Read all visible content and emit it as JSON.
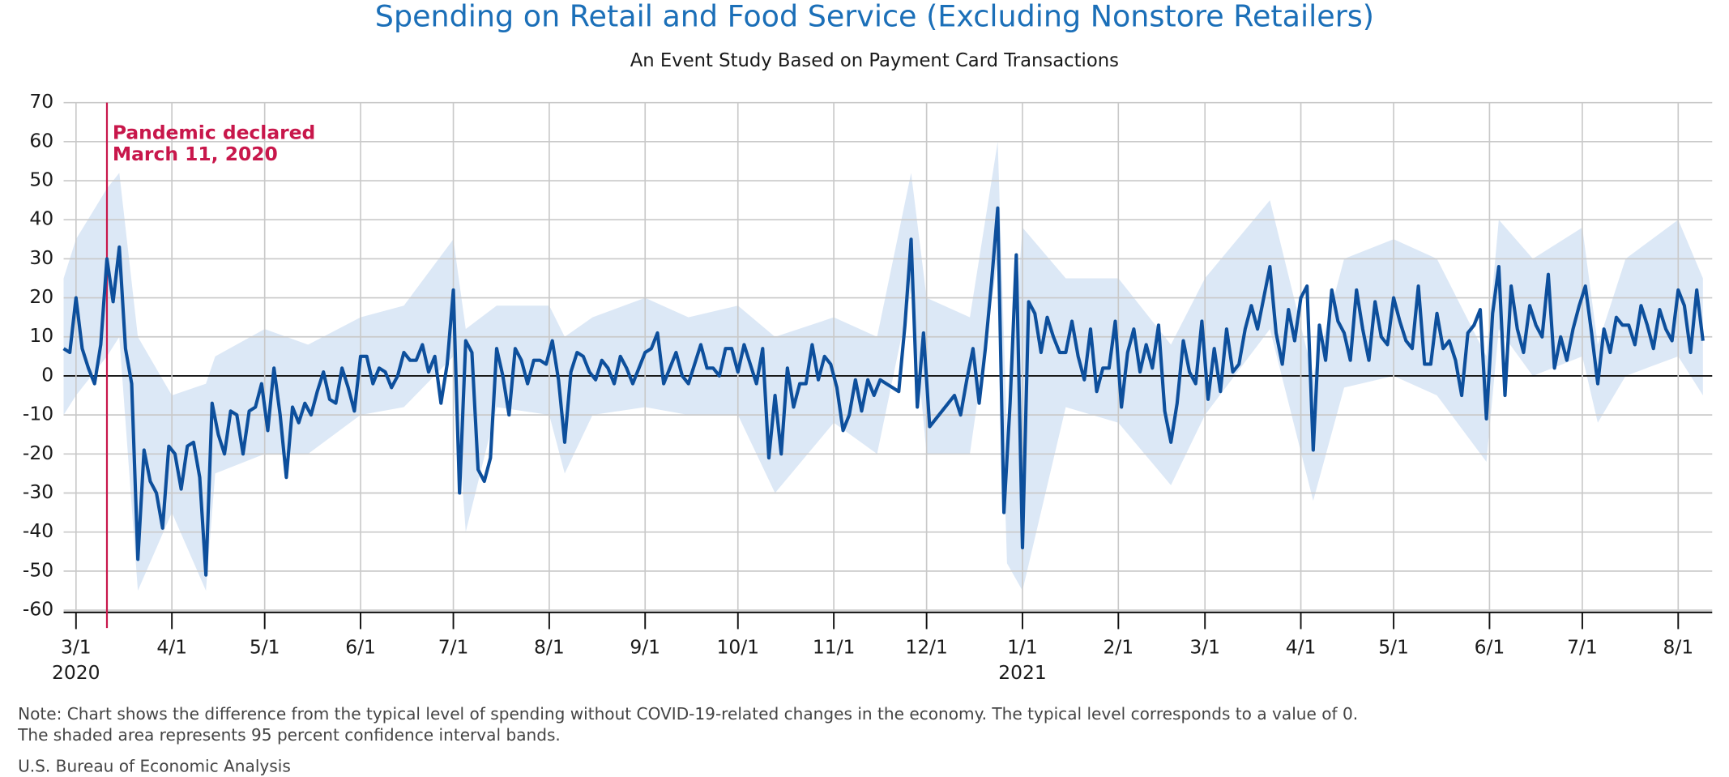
{
  "chart_data": {
    "type": "line",
    "title": "Spending on Retail and Food Service (Excluding Nonstore Retailers)",
    "subtitle": "An Event Study Based on Payment Card Transactions",
    "notes": [
      "Note: Chart shows the difference from the typical level of spending without COVID-19-related changes in the economy. The typical level corresponds to a value of 0.",
      "The shaded area represents 95 percent confidence interval bands."
    ],
    "source": "U.S. Bureau of Economic Analysis",
    "color": "#0d4f9c",
    "grid": true,
    "ylim": [
      -60,
      70
    ],
    "yticks": [
      -60,
      -50,
      -40,
      -30,
      -20,
      -10,
      0,
      10,
      20,
      30,
      40,
      50,
      60,
      70
    ],
    "xlim": [
      "2020-02-26",
      "2021-08-12"
    ],
    "xticks": [
      {
        "value": "2020-03-01",
        "label": "3/1"
      },
      {
        "value": "2020-04-01",
        "label": "4/1"
      },
      {
        "value": "2020-05-01",
        "label": "5/1"
      },
      {
        "value": "2020-06-01",
        "label": "6/1"
      },
      {
        "value": "2020-07-01",
        "label": "7/1"
      },
      {
        "value": "2020-08-01",
        "label": "8/1"
      },
      {
        "value": "2020-09-01",
        "label": "9/1"
      },
      {
        "value": "2020-10-01",
        "label": "10/1"
      },
      {
        "value": "2020-11-01",
        "label": "11/1"
      },
      {
        "value": "2020-12-01",
        "label": "12/1"
      },
      {
        "value": "2021-01-01",
        "label": "1/1"
      },
      {
        "value": "2021-02-01",
        "label": "2/1"
      },
      {
        "value": "2021-03-01",
        "label": "3/1"
      },
      {
        "value": "2021-04-01",
        "label": "4/1"
      },
      {
        "value": "2021-05-01",
        "label": "5/1"
      },
      {
        "value": "2021-06-01",
        "label": "6/1"
      },
      {
        "value": "2021-07-01",
        "label": "7/1"
      },
      {
        "value": "2021-08-01",
        "label": "8/1"
      }
    ],
    "year_labels": [
      {
        "value": "2020-03-01",
        "label": "2020"
      },
      {
        "value": "2021-01-01",
        "label": "2021"
      }
    ],
    "annotation": {
      "x": "2020-03-11",
      "lines": [
        "Pandemic declared",
        "March 11, 2020"
      ],
      "color": "#c8174b"
    },
    "x": [
      "2020-02-26",
      "2020-02-28",
      "2020-03-01",
      "2020-03-03",
      "2020-03-05",
      "2020-03-07",
      "2020-03-09",
      "2020-03-11",
      "2020-03-13",
      "2020-03-15",
      "2020-03-17",
      "2020-03-19",
      "2020-03-21",
      "2020-03-23",
      "2020-03-25",
      "2020-03-27",
      "2020-03-29",
      "2020-03-31",
      "2020-04-02",
      "2020-04-04",
      "2020-04-06",
      "2020-04-08",
      "2020-04-10",
      "2020-04-12",
      "2020-04-14",
      "2020-04-16",
      "2020-04-18",
      "2020-04-20",
      "2020-04-22",
      "2020-04-24",
      "2020-04-26",
      "2020-04-28",
      "2020-04-30",
      "2020-05-02",
      "2020-05-04",
      "2020-05-06",
      "2020-05-08",
      "2020-05-10",
      "2020-05-12",
      "2020-05-14",
      "2020-05-16",
      "2020-05-18",
      "2020-05-20",
      "2020-05-22",
      "2020-05-24",
      "2020-05-26",
      "2020-05-28",
      "2020-05-30",
      "2020-06-01",
      "2020-06-03",
      "2020-06-05",
      "2020-06-07",
      "2020-06-09",
      "2020-06-11",
      "2020-06-13",
      "2020-06-15",
      "2020-06-17",
      "2020-06-19",
      "2020-06-21",
      "2020-06-23",
      "2020-06-25",
      "2020-06-27",
      "2020-06-29",
      "2020-07-01",
      "2020-07-03",
      "2020-07-05",
      "2020-07-07",
      "2020-07-09",
      "2020-07-11",
      "2020-07-13",
      "2020-07-15",
      "2020-07-17",
      "2020-07-19",
      "2020-07-21",
      "2020-07-23",
      "2020-07-25",
      "2020-07-27",
      "2020-07-29",
      "2020-07-31",
      "2020-08-02",
      "2020-08-04",
      "2020-08-06",
      "2020-08-08",
      "2020-08-10",
      "2020-08-12",
      "2020-08-14",
      "2020-08-16",
      "2020-08-18",
      "2020-08-20",
      "2020-08-22",
      "2020-08-24",
      "2020-08-26",
      "2020-08-28",
      "2020-08-30",
      "2020-09-01",
      "2020-09-03",
      "2020-09-05",
      "2020-09-07",
      "2020-09-09",
      "2020-09-11",
      "2020-09-13",
      "2020-09-15",
      "2020-09-17",
      "2020-09-19",
      "2020-09-21",
      "2020-09-23",
      "2020-09-25",
      "2020-09-27",
      "2020-09-29",
      "2020-10-01",
      "2020-10-03",
      "2020-10-05",
      "2020-10-07",
      "2020-10-09",
      "2020-10-11",
      "2020-10-13",
      "2020-10-15",
      "2020-10-17",
      "2020-10-19",
      "2020-10-21",
      "2020-10-23",
      "2020-10-25",
      "2020-10-27",
      "2020-10-29",
      "2020-10-31",
      "2020-11-02",
      "2020-11-04",
      "2020-11-06",
      "2020-11-08",
      "2020-11-10",
      "2020-11-12",
      "2020-11-14",
      "2020-11-16",
      "2020-11-18",
      "2020-11-20",
      "2020-11-22",
      "2020-11-24",
      "2020-11-26",
      "2020-11-28",
      "2020-11-30",
      "2020-12-02",
      "2020-12-04",
      "2020-12-06",
      "2020-12-08",
      "2020-12-10",
      "2020-12-12",
      "2020-12-14",
      "2020-12-16",
      "2020-12-18",
      "2020-12-20",
      "2020-12-22",
      "2020-12-24",
      "2020-12-26",
      "2020-12-28",
      "2020-12-30",
      "2021-01-01",
      "2021-01-03",
      "2021-01-05",
      "2021-01-07",
      "2021-01-09",
      "2021-01-11",
      "2021-01-13",
      "2021-01-15",
      "2021-01-17",
      "2021-01-19",
      "2021-01-21",
      "2021-01-23",
      "2021-01-25",
      "2021-01-27",
      "2021-01-29",
      "2021-01-31",
      "2021-02-02",
      "2021-02-04",
      "2021-02-06",
      "2021-02-08",
      "2021-02-10",
      "2021-02-12",
      "2021-02-14",
      "2021-02-16",
      "2021-02-18",
      "2021-02-20",
      "2021-02-22",
      "2021-02-24",
      "2021-02-26",
      "2021-02-28",
      "2021-03-02",
      "2021-03-04",
      "2021-03-06",
      "2021-03-08",
      "2021-03-10",
      "2021-03-12",
      "2021-03-14",
      "2021-03-16",
      "2021-03-18",
      "2021-03-20",
      "2021-03-22",
      "2021-03-24",
      "2021-03-26",
      "2021-03-28",
      "2021-03-30",
      "2021-04-01",
      "2021-04-03",
      "2021-04-05",
      "2021-04-07",
      "2021-04-09",
      "2021-04-11",
      "2021-04-13",
      "2021-04-15",
      "2021-04-17",
      "2021-04-19",
      "2021-04-21",
      "2021-04-23",
      "2021-04-25",
      "2021-04-27",
      "2021-04-29",
      "2021-05-01",
      "2021-05-03",
      "2021-05-05",
      "2021-05-07",
      "2021-05-09",
      "2021-05-11",
      "2021-05-13",
      "2021-05-15",
      "2021-05-17",
      "2021-05-19",
      "2021-05-21",
      "2021-05-23",
      "2021-05-25",
      "2021-05-27",
      "2021-05-29",
      "2021-05-31",
      "2021-06-02",
      "2021-06-04",
      "2021-06-06",
      "2021-06-08",
      "2021-06-10",
      "2021-06-12",
      "2021-06-14",
      "2021-06-16",
      "2021-06-18",
      "2021-06-20",
      "2021-06-22",
      "2021-06-24",
      "2021-06-26",
      "2021-06-28",
      "2021-06-30",
      "2021-07-02",
      "2021-07-04",
      "2021-07-06",
      "2021-07-08",
      "2021-07-10",
      "2021-07-12",
      "2021-07-14",
      "2021-07-16",
      "2021-07-18",
      "2021-07-20",
      "2021-07-22",
      "2021-07-24",
      "2021-07-26",
      "2021-07-28",
      "2021-07-30",
      "2021-08-01",
      "2021-08-03",
      "2021-08-05",
      "2021-08-07",
      "2021-08-09"
    ],
    "values": [
      7,
      6,
      20,
      7,
      2,
      -2,
      8,
      30,
      19,
      33,
      7,
      -2,
      -47,
      -19,
      -27,
      -30,
      -39,
      -18,
      -20,
      -29,
      -18,
      -17,
      -26,
      -51,
      -7,
      -15,
      -20,
      -9,
      -10,
      -20,
      -9,
      -8,
      -2,
      -14,
      2,
      -10,
      -26,
      -8,
      -12,
      -7,
      -10,
      -4,
      1,
      -6,
      -7,
      2,
      -3,
      -9,
      5,
      5,
      -2,
      2,
      1,
      -3,
      0,
      6,
      4,
      4,
      8,
      1,
      5,
      -7,
      3,
      22,
      -30,
      9,
      6,
      -24,
      -27,
      -21,
      7,
      0,
      -10,
      7,
      4,
      -2,
      4,
      4,
      3,
      9,
      -1,
      -17,
      1,
      6,
      5,
      1,
      -1,
      4,
      2,
      -2,
      5,
      2,
      -2,
      2,
      6,
      7,
      11,
      -2,
      2,
      6,
      0,
      -2,
      3,
      8,
      2,
      2,
      0,
      7,
      7,
      1,
      8,
      3,
      -2,
      7,
      -21,
      -5,
      -20,
      2,
      -8,
      -2,
      -2,
      8,
      -1,
      5,
      3,
      -3,
      -14,
      -10,
      -1,
      -9,
      -1,
      -5,
      -1,
      -2,
      -3,
      -4,
      13,
      35,
      -8,
      11,
      -13,
      -11,
      -9,
      -7,
      -5,
      -10,
      -1,
      7,
      -7,
      7,
      24,
      43,
      -35,
      -7,
      31,
      -44,
      19,
      16,
      6,
      15,
      10,
      6,
      6,
      14,
      5,
      -1,
      12,
      -4,
      2,
      2,
      14,
      -8,
      6,
      12,
      1,
      8,
      2,
      13,
      -9,
      -17,
      -7,
      9,
      1,
      -2,
      14,
      -6,
      7,
      -4,
      12,
      1,
      3,
      12,
      18,
      12,
      20,
      28,
      11,
      3,
      17,
      9,
      20,
      23,
      -19,
      13,
      4,
      22,
      14,
      11,
      4,
      22,
      12,
      4,
      19,
      10,
      8,
      20,
      14,
      9,
      7,
      23,
      3,
      3,
      16,
      7,
      9,
      4,
      -5,
      11,
      13,
      17,
      -11,
      16,
      28,
      -5,
      23,
      12,
      6,
      18,
      13,
      10,
      26,
      2,
      10,
      4,
      12,
      18,
      23,
      11,
      -2,
      12,
      6,
      15,
      13,
      13,
      8,
      18,
      13,
      7,
      17,
      12,
      9,
      22,
      18,
      6,
      22,
      9
    ],
    "band": {
      "color": "#dce8f6",
      "x": [
        "2020-02-26",
        "2020-03-01",
        "2020-03-11",
        "2020-03-15",
        "2020-03-21",
        "2020-04-01",
        "2020-04-12",
        "2020-04-15",
        "2020-05-01",
        "2020-05-15",
        "2020-06-01",
        "2020-06-15",
        "2020-07-01",
        "2020-07-05",
        "2020-07-15",
        "2020-08-01",
        "2020-08-06",
        "2020-08-15",
        "2020-09-01",
        "2020-09-15",
        "2020-10-01",
        "2020-10-13",
        "2020-11-01",
        "2020-11-15",
        "2020-11-26",
        "2020-12-01",
        "2020-12-15",
        "2020-12-24",
        "2020-12-27",
        "2021-01-01",
        "2021-01-15",
        "2021-02-01",
        "2021-02-18",
        "2021-03-01",
        "2021-03-22",
        "2021-04-05",
        "2021-04-15",
        "2021-05-01",
        "2021-05-15",
        "2021-05-31",
        "2021-06-04",
        "2021-06-15",
        "2021-07-01",
        "2021-07-06",
        "2021-07-15",
        "2021-08-01",
        "2021-08-09"
      ],
      "upper": [
        25,
        35,
        48,
        52,
        10,
        -5,
        -2,
        5,
        12,
        8,
        15,
        18,
        35,
        12,
        18,
        18,
        10,
        15,
        20,
        15,
        18,
        10,
        15,
        10,
        52,
        20,
        15,
        60,
        -15,
        38,
        25,
        25,
        8,
        25,
        45,
        0,
        30,
        35,
        30,
        5,
        40,
        30,
        38,
        8,
        30,
        40,
        25
      ],
      "lower": [
        -10,
        -5,
        5,
        10,
        -55,
        -35,
        -55,
        -25,
        -20,
        -20,
        -10,
        -8,
        5,
        -40,
        -8,
        -10,
        -25,
        -10,
        -8,
        -10,
        -10,
        -30,
        -12,
        -20,
        22,
        -20,
        -20,
        30,
        -48,
        -55,
        -8,
        -12,
        -28,
        -10,
        12,
        -32,
        -3,
        0,
        -5,
        -22,
        12,
        0,
        5,
        -12,
        0,
        5,
        -5
      ]
    }
  }
}
